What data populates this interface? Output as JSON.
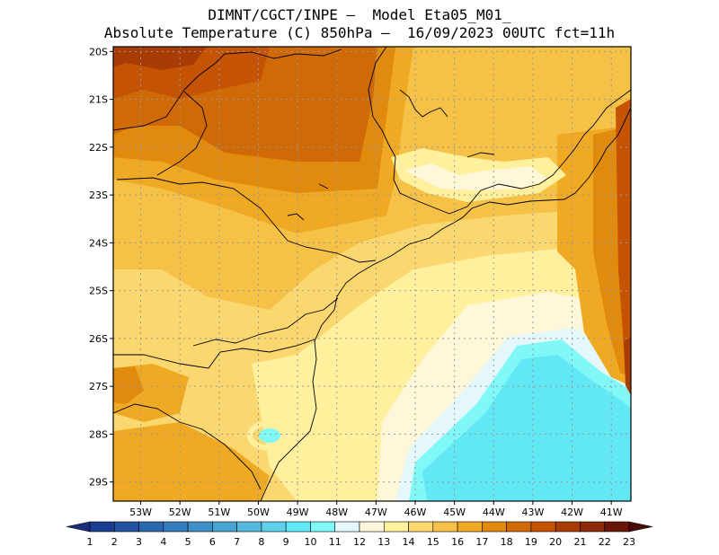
{
  "title": {
    "line1": "DIMNT/CGCT/INPE –  Model Eta05_M01_",
    "line2": "Absolute Temperature (C) 850hPa –  16/09/2023 00UTC fct=11h"
  },
  "map": {
    "lat_labels": [
      "20S",
      "21S",
      "22S",
      "23S",
      "24S",
      "25S",
      "26S",
      "27S",
      "28S",
      "29S"
    ],
    "lon_labels": [
      "53W",
      "52W",
      "51W",
      "50W",
      "49W",
      "48W",
      "47W",
      "46W",
      "45W",
      "44W",
      "43W",
      "42W",
      "41W"
    ],
    "lat_range": [
      -29.4,
      -19.9
    ],
    "lon_range": [
      -53.7,
      -40.5
    ]
  },
  "colorbar": {
    "labels": [
      "1",
      "2",
      "3",
      "4",
      "5",
      "6",
      "7",
      "8",
      "9",
      "10",
      "11",
      "12",
      "13",
      "14",
      "15",
      "16",
      "17",
      "18",
      "19",
      "20",
      "21",
      "22",
      "23"
    ],
    "colors": [
      "#1b3d8f",
      "#23539f",
      "#2b67ad",
      "#357cbb",
      "#3f90c6",
      "#48a4d1",
      "#55b8dc",
      "#5fd0ea",
      "#62e8f5",
      "#80f8f8",
      "#e4f8fc",
      "#fff7da",
      "#fff09e",
      "#fbd770",
      "#f5c146",
      "#f0a922",
      "#e08a0e",
      "#d06a06",
      "#c45404",
      "#a83c04",
      "#8a2a08",
      "#6a1606"
    ],
    "arrow_left_color": "#1b2f7a",
    "arrow_right_color": "#4a0a06"
  },
  "fill_colors": {
    "t12": "#fff7da",
    "t13": "#fff09e",
    "t14": "#fbd770",
    "t15": "#f5c146",
    "t16": "#f0a922",
    "t17": "#e08a0e",
    "t18": "#d06a06",
    "t19": "#c45404",
    "t20": "#a83c04",
    "t11": "#e4f8fc",
    "t10": "#80f8f8",
    "t9": "#62e8f5"
  }
}
